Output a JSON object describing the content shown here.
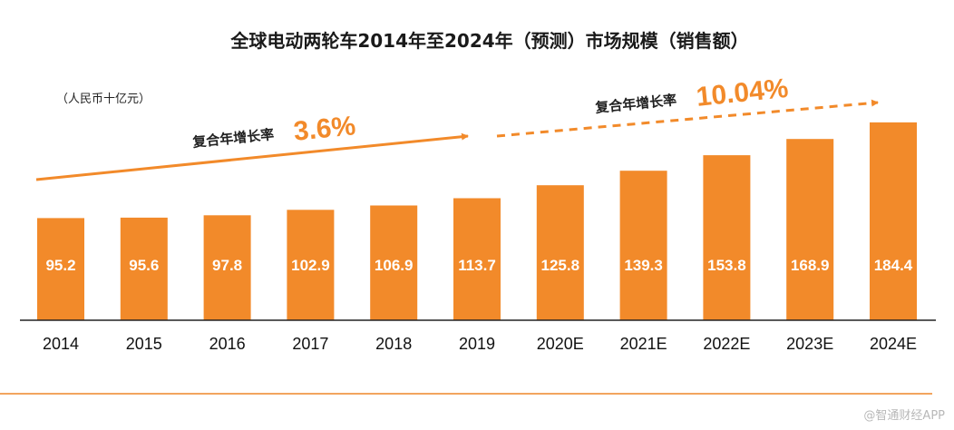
{
  "chart_data": {
    "type": "bar",
    "title": "全球电动两轮车2014年至2024年（预测）市场规模（销售额）",
    "unit": "（人民币十亿元）",
    "categories": [
      "2014",
      "2015",
      "2016",
      "2017",
      "2018",
      "2019",
      "2020E",
      "2021E",
      "2022E",
      "2023E",
      "2024E"
    ],
    "values": [
      95.2,
      95.6,
      97.8,
      102.9,
      106.9,
      113.7,
      125.8,
      139.3,
      153.8,
      168.9,
      184.4
    ],
    "value_labels": [
      "95.2",
      "95.6",
      "97.8",
      "102.9",
      "106.9",
      "113.7",
      "125.8",
      "139.3",
      "153.8",
      "168.9",
      "184.4"
    ],
    "ylim": [
      0,
      200
    ],
    "annotations": [
      {
        "label": "复合年增长率",
        "value": "3.6%",
        "style": "solid",
        "from": "2014",
        "to": "2019"
      },
      {
        "label": "复合年增长率",
        "value": "10.04%",
        "style": "dashed",
        "from": "2020E",
        "to": "2024E"
      }
    ],
    "colors": {
      "bar": "#F28A2A",
      "axis": "#222222",
      "accent": "#F28A2A"
    }
  },
  "watermark": "@智通财经APP"
}
